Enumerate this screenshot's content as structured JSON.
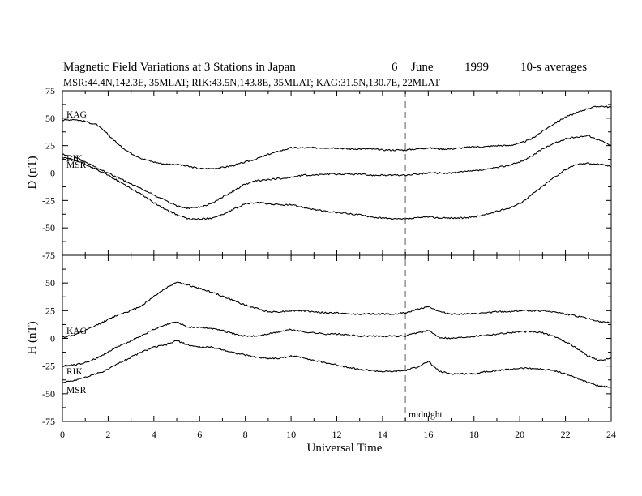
{
  "chart_data": {
    "type": "line",
    "title_parts": {
      "main": "Magnetic Field Variations at 3 Stations in Japan",
      "day": "6",
      "month": "June",
      "year": "1999",
      "averaging": "10-s averages"
    },
    "subtitle": "MSR:44.4N,142.3E, 35MLAT;   RIK:43.5N,143.8E, 35MLAT;   KAG:31.5N,130.7E, 22MLAT",
    "xlabel": "Universal Time",
    "xlim": [
      0,
      24
    ],
    "xticks": [
      "0",
      "2",
      "4",
      "6",
      "8",
      "10",
      "12",
      "14",
      "16",
      "18",
      "20",
      "22",
      "24"
    ],
    "midline_x": 15,
    "midline_label": "midnight",
    "panels": [
      {
        "ylabel": "D (nT)",
        "ylim": [
          -75,
          75
        ],
        "yticks": [
          "-75",
          "-50",
          "-25",
          "0",
          "25",
          "50",
          "75"
        ],
        "series": [
          {
            "name": "KAG",
            "x": [
              0,
              0.5,
              1,
              1.5,
              2,
              2.5,
              3,
              3.5,
              4,
              4.5,
              5,
              5.5,
              6,
              6.5,
              7,
              7.5,
              8,
              8.5,
              9,
              9.5,
              10,
              10.5,
              11,
              11.5,
              12,
              12.5,
              13,
              13.5,
              14,
              14.5,
              15,
              15.5,
              16,
              16.5,
              17,
              17.5,
              18,
              18.5,
              19,
              19.5,
              20,
              20.5,
              21,
              21.5,
              22,
              22.5,
              23,
              23.5,
              24
            ],
            "y": [
              48,
              49,
              47,
              44,
              35,
              25,
              18,
              13,
              10,
              8,
              8,
              6,
              4,
              4,
              5,
              7,
              10,
              13,
              17,
              20,
              23,
              23,
              23,
              23,
              23,
              22,
              22,
              22,
              21,
              21,
              21,
              22,
              23,
              22,
              22,
              23,
              24,
              24,
              25,
              25,
              27,
              31,
              38,
              45,
              51,
              55,
              59,
              61,
              60
            ]
          },
          {
            "name": "RIK",
            "x": [
              0,
              0.5,
              1,
              1.5,
              2,
              2.5,
              3,
              3.5,
              4,
              4.5,
              5,
              5.5,
              6,
              6.5,
              7,
              7.5,
              8,
              8.5,
              9,
              9.5,
              10,
              10.5,
              11,
              11.5,
              12,
              12.5,
              13,
              13.5,
              14,
              14.5,
              15,
              15.5,
              16,
              16.5,
              17,
              17.5,
              18,
              18.5,
              19,
              19.5,
              20,
              20.5,
              21,
              21.5,
              22,
              22.5,
              23,
              23.5,
              24
            ],
            "y": [
              17,
              15,
              10,
              5,
              0,
              -5,
              -10,
              -15,
              -20,
              -25,
              -30,
              -32,
              -31,
              -28,
              -22,
              -16,
              -10,
              -7,
              -6,
              -5,
              -4,
              -2,
              -2,
              -1,
              -1,
              -1,
              -1,
              -2,
              -2,
              -2,
              -2,
              -1,
              0,
              0,
              0,
              1,
              2,
              3,
              5,
              7,
              10,
              15,
              22,
              27,
              31,
              33,
              34,
              30,
              25
            ]
          },
          {
            "name": "MSR",
            "x": [
              0,
              0.5,
              1,
              1.5,
              2,
              2.5,
              3,
              3.5,
              4,
              4.5,
              5,
              5.5,
              6,
              6.5,
              7,
              7.5,
              8,
              8.5,
              9,
              9.5,
              10,
              10.5,
              11,
              11.5,
              12,
              12.5,
              13,
              13.5,
              14,
              14.5,
              15,
              15.5,
              16,
              16.5,
              17,
              17.5,
              18,
              18.5,
              19,
              19.5,
              20,
              20.5,
              21,
              21.5,
              22,
              22.5,
              23,
              23.5,
              24
            ],
            "y": [
              14,
              12,
              8,
              3,
              -2,
              -8,
              -14,
              -20,
              -27,
              -33,
              -38,
              -42,
              -42,
              -41,
              -38,
              -33,
              -28,
              -27,
              -28,
              -29,
              -29,
              -31,
              -33,
              -35,
              -36,
              -37,
              -38,
              -40,
              -41,
              -42,
              -42,
              -41,
              -40,
              -41,
              -41,
              -41,
              -40,
              -38,
              -35,
              -32,
              -28,
              -20,
              -12,
              -4,
              3,
              8,
              9,
              8,
              6
            ]
          }
        ]
      },
      {
        "ylabel": "H (nT)",
        "ylim": [
          -75,
          75
        ],
        "yticks": [
          "-75",
          "-50",
          "-25",
          "0",
          "25",
          "50",
          ""
        ],
        "series": [
          {
            "name": "KAG",
            "x": [
              0,
              0.5,
              1,
              1.5,
              2,
              2.5,
              3,
              3.5,
              4,
              4.5,
              5,
              5.5,
              6,
              6.5,
              7,
              7.5,
              8,
              8.5,
              9,
              9.5,
              10,
              10.5,
              11,
              11.5,
              12,
              12.5,
              13,
              13.5,
              14,
              14.5,
              15,
              15.5,
              16,
              16.5,
              17,
              17.5,
              18,
              18.5,
              19,
              19.5,
              20,
              20.5,
              21,
              21.5,
              22,
              22.5,
              23,
              23.5,
              24
            ],
            "y": [
              1,
              3,
              7,
              12,
              17,
              22,
              25,
              30,
              38,
              45,
              51,
              48,
              45,
              42,
              38,
              34,
              30,
              27,
              24,
              24,
              25,
              25,
              24,
              23,
              23,
              22,
              22,
              22,
              22,
              22,
              23,
              26,
              29,
              24,
              22,
              22,
              22,
              23,
              24,
              24,
              25,
              25,
              25,
              24,
              22,
              20,
              18,
              15,
              14
            ]
          },
          {
            "name": "RIK",
            "x": [
              0,
              0.5,
              1,
              1.5,
              2,
              2.5,
              3,
              3.5,
              4,
              4.5,
              5,
              5.5,
              6,
              6.5,
              7,
              7.5,
              8,
              8.5,
              9,
              9.5,
              10,
              10.5,
              11,
              11.5,
              12,
              12.5,
              13,
              13.5,
              14,
              14.5,
              15,
              15.5,
              16,
              16.5,
              17,
              17.5,
              18,
              18.5,
              19,
              19.5,
              20,
              20.5,
              21,
              21.5,
              22,
              22.5,
              23,
              23.5,
              24
            ],
            "y": [
              -25,
              -24,
              -22,
              -18,
              -12,
              -7,
              -2,
              3,
              8,
              12,
              15,
              10,
              10,
              9,
              7,
              4,
              2,
              2,
              4,
              6,
              8,
              6,
              5,
              4,
              4,
              3,
              2,
              2,
              2,
              2,
              2,
              5,
              7,
              1,
              0,
              1,
              2,
              3,
              4,
              5,
              6,
              6,
              5,
              2,
              -3,
              -9,
              -16,
              -20,
              -18
            ]
          },
          {
            "name": "MSR",
            "x": [
              0,
              0.5,
              1,
              1.5,
              2,
              2.5,
              3,
              3.5,
              4,
              4.5,
              5,
              5.5,
              6,
              6.5,
              7,
              7.5,
              8,
              8.5,
              9,
              9.5,
              10,
              10.5,
              11,
              11.5,
              12,
              12.5,
              13,
              13.5,
              14,
              14.5,
              15,
              15.5,
              16,
              16.5,
              17,
              17.5,
              18,
              18.5,
              19,
              19.5,
              20,
              20.5,
              21,
              21.5,
              22,
              22.5,
              23,
              23.5,
              24
            ],
            "y": [
              -40,
              -38,
              -35,
              -32,
              -28,
              -22,
              -17,
              -12,
              -8,
              -6,
              -2,
              -6,
              -8,
              -8,
              -10,
              -13,
              -15,
              -17,
              -18,
              -18,
              -16,
              -17,
              -20,
              -22,
              -24,
              -26,
              -28,
              -29,
              -30,
              -30,
              -29,
              -26,
              -21,
              -30,
              -32,
              -32,
              -32,
              -30,
              -29,
              -28,
              -27,
              -27,
              -28,
              -29,
              -32,
              -36,
              -40,
              -43,
              -44
            ]
          }
        ]
      }
    ]
  }
}
